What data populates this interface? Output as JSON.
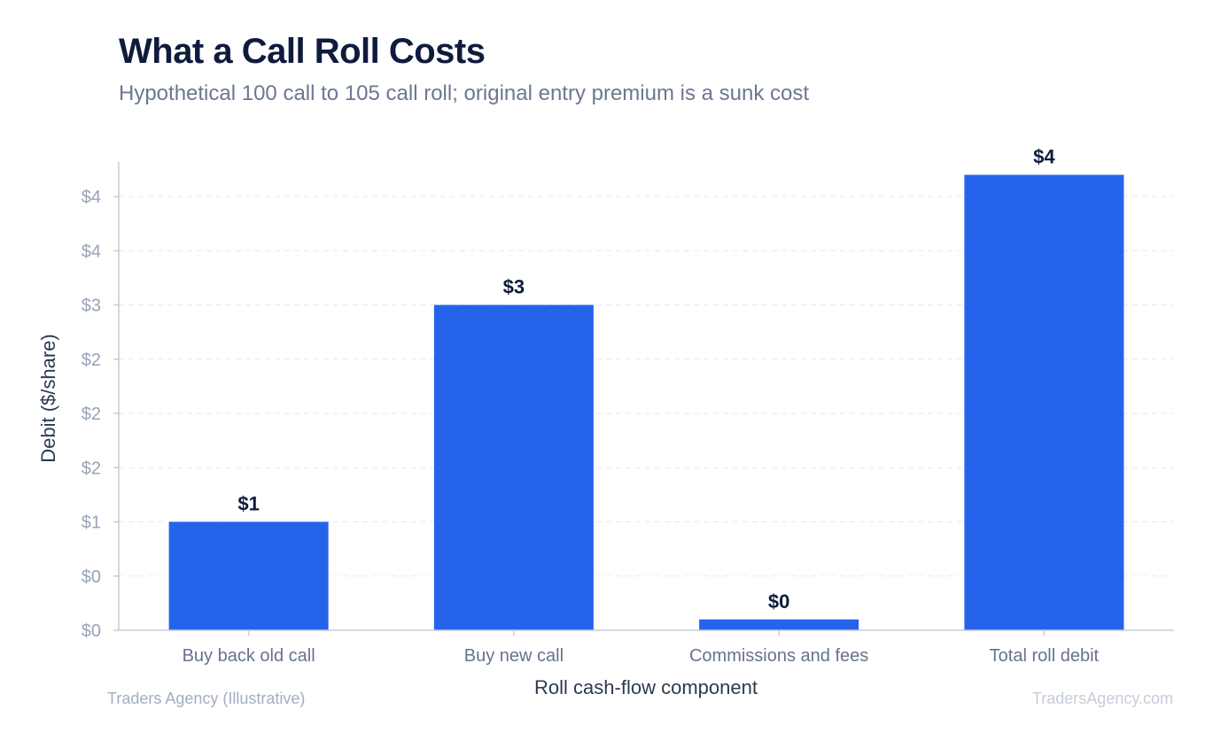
{
  "header": {
    "title": "What a Call Roll Costs",
    "subtitle": "Hypothetical 100 call to 105 call roll; original entry premium is a sunk cost"
  },
  "footer": {
    "source": "Traders Agency (Illustrative)",
    "brand": "TradersAgency.com"
  },
  "colors": {
    "bar": "#2563eb",
    "grid": "#e6e9ef",
    "axis": "#c5ccd8"
  },
  "chart_data": {
    "type": "bar",
    "title": "What a Call Roll Costs",
    "subtitle": "Hypothetical 100 call to 105 call roll; original entry premium is a sunk cost",
    "xlabel": "Roll cash-flow component",
    "ylabel": "Debit ($/share)",
    "categories": [
      "Buy back old call",
      "Buy new call",
      "Commissions and fees",
      "Total roll debit"
    ],
    "values": [
      1.0,
      3.0,
      0.1,
      4.2
    ],
    "value_labels": [
      "$1",
      "$3",
      "$0",
      "$4"
    ],
    "ylim": [
      0,
      4.3
    ],
    "yticks": [
      0,
      0.5,
      1.0,
      1.5,
      2.0,
      2.5,
      3.0,
      3.5,
      4.0
    ],
    "ytick_labels": [
      "$0",
      "$0",
      "$1",
      "$2",
      "$2",
      "$2",
      "$3",
      "$4",
      "$4"
    ],
    "grid": true
  }
}
